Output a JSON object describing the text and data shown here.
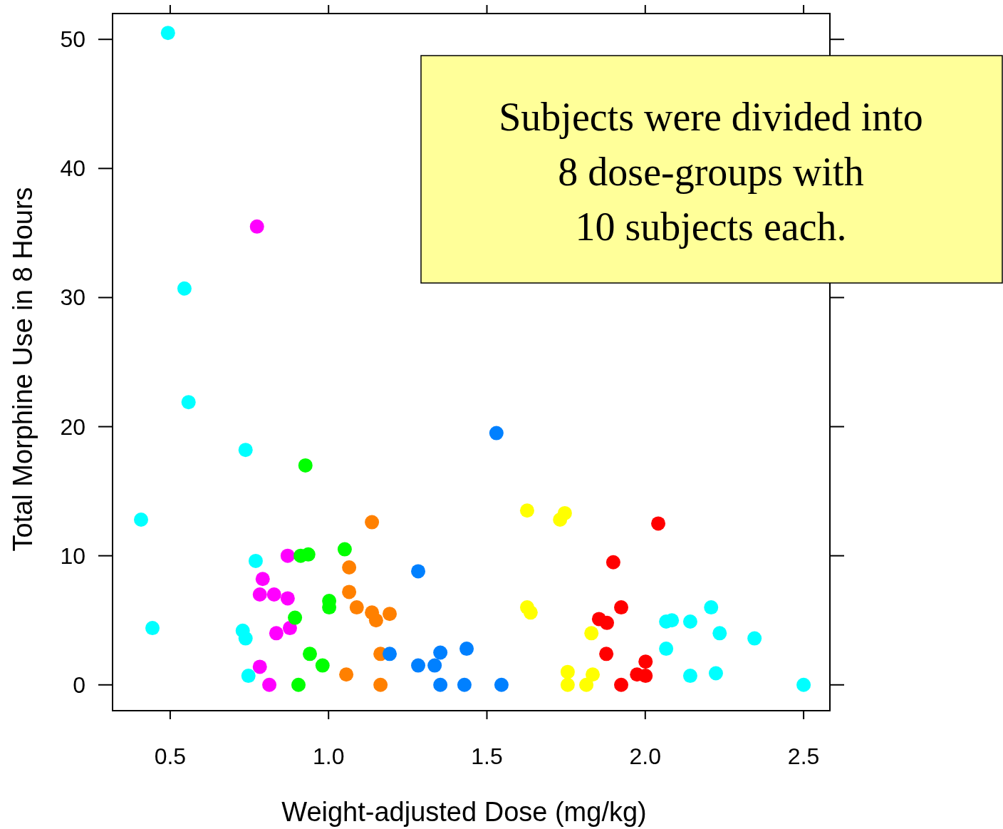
{
  "chart_data": {
    "type": "scatter",
    "xlabel": "Weight-adjusted Dose (mg/kg)",
    "ylabel": "Total Morphine Use in 8 Hours",
    "annotations": [
      "Subjects were divided into\n8 dose-groups with\n10 subjects each."
    ],
    "xlim": [
      0.318,
      2.583
    ],
    "ylim": [
      -2,
      52
    ],
    "xticks": [
      0.5,
      {
        "value": 1,
        "label": "1.0"
      },
      1.5,
      {
        "value": 2,
        "label": "2.0"
      },
      2.5
    ],
    "yticks": [
      0,
      10,
      20,
      30,
      40,
      50
    ],
    "grid": false,
    "marker": "circle",
    "series": [
      {
        "color": "#00ffff",
        "x": [
          0.493,
          0.545,
          0.558,
          0.408,
          0.444,
          0.738,
          0.77,
          0.729,
          0.738,
          0.747
        ],
        "values": [
          50.5,
          30.7,
          21.9,
          12.8,
          4.4,
          18.2,
          9.6,
          4.2,
          3.6,
          0.7
        ]
      },
      {
        "color": "#ff00ff",
        "x": [
          0.774,
          0.792,
          0.783,
          0.828,
          0.871,
          0.871,
          0.835,
          0.878,
          0.783,
          0.813
        ],
        "values": [
          35.5,
          8.2,
          7.0,
          7.0,
          10.0,
          6.7,
          4.0,
          4.4,
          1.4,
          0.0
        ]
      },
      {
        "color": "#00ff00",
        "x": [
          0.927,
          0.912,
          0.936,
          1.051,
          1.002,
          1.002,
          0.894,
          0.941,
          0.981,
          0.905
        ],
        "values": [
          17.0,
          10.0,
          10.1,
          10.5,
          6.5,
          6.0,
          5.2,
          2.4,
          1.5,
          0.0
        ]
      },
      {
        "color": "#ff8000",
        "x": [
          1.137,
          1.065,
          1.065,
          1.089,
          1.137,
          1.15,
          1.193,
          1.164,
          1.056,
          1.164
        ],
        "values": [
          12.6,
          9.1,
          7.2,
          6.0,
          5.6,
          5.0,
          5.5,
          2.4,
          0.8,
          0.0
        ]
      },
      {
        "color": "#0080ff",
        "x": [
          1.53,
          1.283,
          1.193,
          1.353,
          1.436,
          1.283,
          1.335,
          1.353,
          1.429,
          1.546
        ],
        "values": [
          19.5,
          8.8,
          2.4,
          2.5,
          2.8,
          1.5,
          1.5,
          0.0,
          0.0,
          0.0
        ]
      },
      {
        "color": "#ffff00",
        "x": [
          1.627,
          1.746,
          1.731,
          1.627,
          1.638,
          1.83,
          1.755,
          1.834,
          1.755,
          1.814
        ],
        "values": [
          13.5,
          13.3,
          12.8,
          6.0,
          5.6,
          4.0,
          1.0,
          0.8,
          0.0,
          0.0
        ]
      },
      {
        "color": "#ff0000",
        "x": [
          2.041,
          1.899,
          1.924,
          1.854,
          1.879,
          1.877,
          2.001,
          1.974,
          2.001,
          1.924
        ],
        "values": [
          12.5,
          9.5,
          6.0,
          5.1,
          4.8,
          2.4,
          1.8,
          0.8,
          0.7,
          0.0
        ]
      },
      {
        "color": "#00ffff",
        "x": [
          2.208,
          2.066,
          2.084,
          2.142,
          2.235,
          2.345,
          2.066,
          2.142,
          2.223,
          2.5
        ],
        "values": [
          6.0,
          4.9,
          5.0,
          4.9,
          4.0,
          3.6,
          2.8,
          0.7,
          0.9,
          0.0
        ]
      }
    ]
  }
}
